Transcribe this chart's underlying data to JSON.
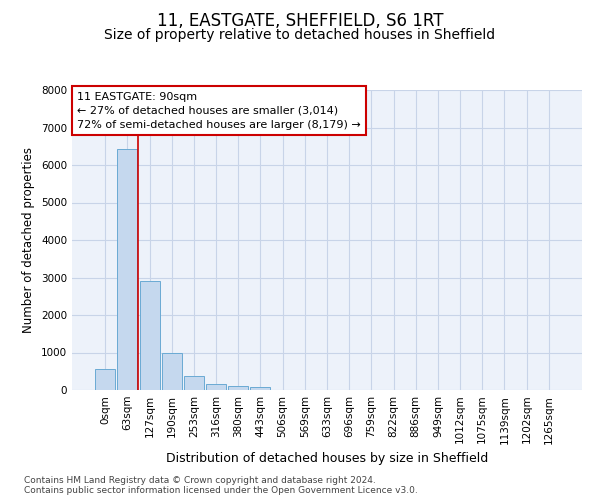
{
  "title": "11, EASTGATE, SHEFFIELD, S6 1RT",
  "subtitle": "Size of property relative to detached houses in Sheffield",
  "xlabel": "Distribution of detached houses by size in Sheffield",
  "ylabel": "Number of detached properties",
  "bar_color": "#c5d8ee",
  "bar_edge_color": "#6aaad4",
  "grid_color": "#c8d4e8",
  "background_color": "#edf2fa",
  "vline_color": "#cc0000",
  "vline_x": 1.5,
  "annotation_line1": "11 EASTGATE: 90sqm",
  "annotation_line2": "← 27% of detached houses are smaller (3,014)",
  "annotation_line3": "72% of semi-detached houses are larger (8,179) →",
  "annotation_box_color": "#cc0000",
  "categories": [
    "0sqm",
    "63sqm",
    "127sqm",
    "190sqm",
    "253sqm",
    "316sqm",
    "380sqm",
    "443sqm",
    "506sqm",
    "569sqm",
    "633sqm",
    "696sqm",
    "759sqm",
    "822sqm",
    "886sqm",
    "949sqm",
    "1012sqm",
    "1075sqm",
    "1139sqm",
    "1202sqm",
    "1265sqm"
  ],
  "values": [
    560,
    6420,
    2920,
    980,
    380,
    170,
    110,
    80,
    0,
    0,
    0,
    0,
    0,
    0,
    0,
    0,
    0,
    0,
    0,
    0,
    0
  ],
  "ylim": [
    0,
    8000
  ],
  "yticks": [
    0,
    1000,
    2000,
    3000,
    4000,
    5000,
    6000,
    7000,
    8000
  ],
  "footnote": "Contains HM Land Registry data © Crown copyright and database right 2024.\nContains public sector information licensed under the Open Government Licence v3.0.",
  "title_fontsize": 12,
  "subtitle_fontsize": 10,
  "ylabel_fontsize": 8.5,
  "xlabel_fontsize": 9,
  "tick_fontsize": 7.5,
  "footnote_fontsize": 6.5,
  "ann_fontsize": 8
}
